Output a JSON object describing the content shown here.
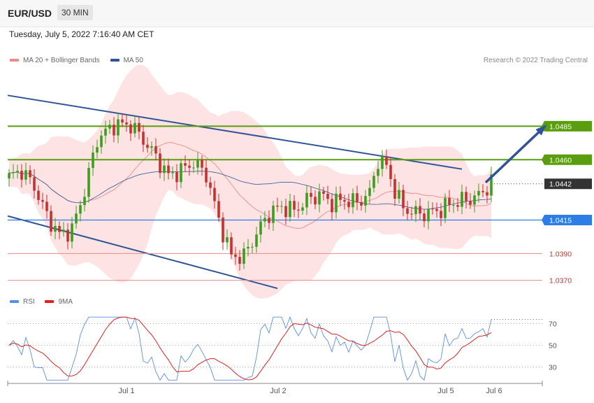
{
  "header": {
    "symbol": "EUR/USD",
    "timeframe": "30 MIN",
    "datetime": "Tuesday, July 5, 2022 7:16:40 AM CET",
    "credit": "Research © 2022 Trading Central"
  },
  "colors": {
    "up": "#3d9e1e",
    "down": "#c9302c",
    "ma20": "#f08a8a",
    "bands": "#fde3e3",
    "ma50": "#2f5597",
    "resistance": "#5a9e0f",
    "support": "#2e7de6",
    "minor": "#e88a8a",
    "current": "#333333",
    "rsi": "#5b8ee6",
    "rsi_ma": "#e02020"
  },
  "legend_price": [
    {
      "label": "MA 20 + Bollinger Bands",
      "color": "#f08a8a"
    },
    {
      "label": "MA 50",
      "color": "#2f5597"
    }
  ],
  "legend_rsi": [
    {
      "label": "RSI",
      "color": "#5b8ee6"
    },
    {
      "label": "9MA",
      "color": "#e02020"
    }
  ],
  "chart_data": [
    {
      "type": "candlestick",
      "ylim": [
        1.0362,
        1.0528
      ],
      "series": [
        {
          "name": "MA 20 + Bollinger Bands"
        },
        {
          "name": "MA 50"
        }
      ],
      "levels": [
        {
          "value": 1.0485,
          "label": "1.0485",
          "style": "resistance"
        },
        {
          "value": 1.046,
          "label": "1.0460",
          "style": "resistance"
        },
        {
          "value": 1.0442,
          "label": "1.0442",
          "style": "current"
        },
        {
          "value": 1.0415,
          "label": "1.0415",
          "style": "support"
        },
        {
          "value": 1.039,
          "label": "1.0390",
          "style": "minor"
        },
        {
          "value": 1.037,
          "label": "1.0370",
          "style": "minor"
        }
      ],
      "x_ticks": [
        "Jul 1",
        "Jul 2",
        "Jul 5",
        "Jul 6"
      ],
      "trend_lines": [
        {
          "from": [
            0,
            1.0508
          ],
          "to": [
            108,
            1.0453
          ]
        },
        {
          "from": [
            0,
            1.0418
          ],
          "to": [
            64,
            1.0364
          ]
        }
      ],
      "projection": {
        "from": [
          115,
          1.0443
        ],
        "to": [
          128,
          1.0485
        ]
      }
    },
    {
      "type": "line",
      "ylim": [
        15,
        80
      ],
      "y_ticks": [
        70,
        50,
        30
      ],
      "series": [
        {
          "name": "RSI"
        },
        {
          "name": "9MA"
        }
      ]
    }
  ]
}
